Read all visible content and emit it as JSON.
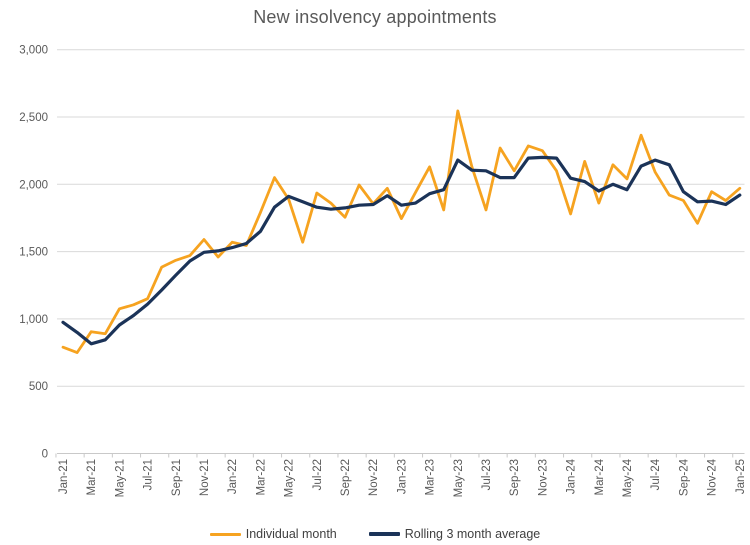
{
  "title": "New insolvency appointments",
  "colors": {
    "individual_month": "#F6A320",
    "rolling_average": "#1B3358",
    "gridline": "#D9D9D9",
    "axis_line": "#C9C9C9",
    "axis_text": "#595959",
    "legend_text": "#404040",
    "title_text": "#595959",
    "background": "#FFFFFF"
  },
  "y_axis": {
    "min": 0,
    "max": 3000,
    "tick_interval": 500,
    "tick_labels": [
      "0",
      "500",
      "1,000",
      "1,500",
      "2,000",
      "2,500",
      "3,000"
    ]
  },
  "x_axis": {
    "label_every_n_months": 2,
    "shown_tick_labels": [
      "Jan-21",
      "Mar-21",
      "May-21",
      "Jul-21",
      "Sep-21",
      "Nov-21",
      "Jan-22",
      "Mar-22",
      "May-22",
      "Jul-22",
      "Sep-22",
      "Nov-22",
      "Jan-23",
      "Mar-23",
      "May-23",
      "Jul-23",
      "Sep-23",
      "Nov-23",
      "Jan-24",
      "Mar-24",
      "May-24",
      "Jul-24",
      "Sep-24",
      "Nov-24",
      "Jan-25"
    ]
  },
  "legend": {
    "items": [
      {
        "label": "Individual month",
        "color": "#F6A320"
      },
      {
        "label": "Rolling 3 month average",
        "color": "#1B3358"
      }
    ]
  },
  "chart_data": {
    "type": "line",
    "title": "New insolvency appointments",
    "xlabel": "",
    "ylabel": "",
    "ylim": [
      0,
      3000
    ],
    "grid": "horizontal",
    "legend_position": "bottom",
    "x": [
      "Jan-21",
      "Feb-21",
      "Mar-21",
      "Apr-21",
      "May-21",
      "Jun-21",
      "Jul-21",
      "Aug-21",
      "Sep-21",
      "Oct-21",
      "Nov-21",
      "Dec-21",
      "Jan-22",
      "Feb-22",
      "Mar-22",
      "Apr-22",
      "May-22",
      "Jun-22",
      "Jul-22",
      "Aug-22",
      "Sep-22",
      "Oct-22",
      "Nov-22",
      "Dec-22",
      "Jan-23",
      "Feb-23",
      "Mar-23",
      "Apr-23",
      "May-23",
      "Jun-23",
      "Jul-23",
      "Aug-23",
      "Sep-23",
      "Oct-23",
      "Nov-23",
      "Dec-23",
      "Jan-24",
      "Feb-24",
      "Mar-24",
      "Apr-24",
      "May-24",
      "Jun-24",
      "Jul-24",
      "Aug-24",
      "Sep-24",
      "Oct-24",
      "Nov-24",
      "Dec-24",
      "Jan-25"
    ],
    "series": [
      {
        "name": "Individual month",
        "color": "#F6A320",
        "stroke_width": 2.8,
        "values": [
          790,
          750,
          905,
          890,
          1075,
          1105,
          1150,
          1385,
          1435,
          1470,
          1590,
          1460,
          1570,
          1545,
          1790,
          2050,
          1890,
          1570,
          1935,
          1860,
          1755,
          1995,
          1855,
          1970,
          1745,
          1940,
          2130,
          1810,
          2545,
          2130,
          1810,
          2270,
          2100,
          2285,
          2250,
          2100,
          1780,
          2170,
          1860,
          2145,
          2040,
          2365,
          2090,
          1920,
          1880,
          1710,
          1945,
          1880,
          1970
        ]
      },
      {
        "name": "Rolling 3 month average",
        "color": "#1B3358",
        "stroke_width": 3.2,
        "values": [
          975,
          900,
          815,
          845,
          955,
          1025,
          1110,
          1215,
          1325,
          1430,
          1495,
          1505,
          1530,
          1560,
          1650,
          1830,
          1910,
          1870,
          1830,
          1815,
          1825,
          1845,
          1850,
          1915,
          1845,
          1860,
          1930,
          1960,
          2180,
          2105,
          2100,
          2050,
          2050,
          2195,
          2200,
          2195,
          2045,
          2020,
          1950,
          2000,
          1960,
          2135,
          2180,
          2145,
          1945,
          1870,
          1875,
          1850,
          1920
        ]
      }
    ]
  }
}
